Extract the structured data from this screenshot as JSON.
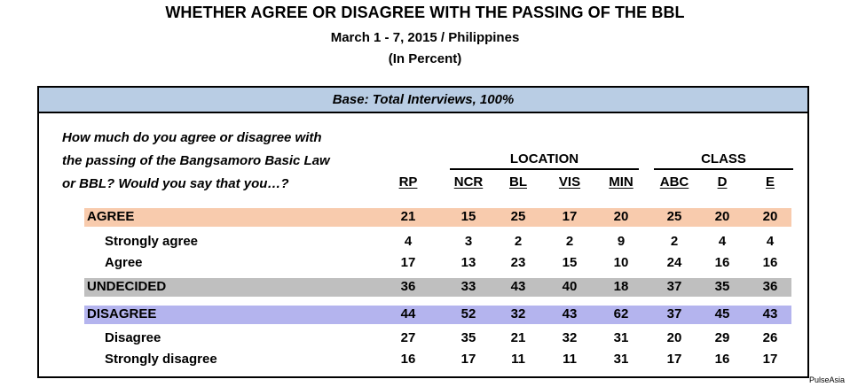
{
  "title": "WHETHER AGREE OR DISAGREE WITH THE PASSING OF THE BBL",
  "subtitle": "March 1 - 7, 2015 / Philippines",
  "unit_note": "(In Percent)",
  "base": "Base: Total Interviews, 100%",
  "question": [
    "How much do you agree or disagree with",
    "the passing of the Bangsamoro Basic Law",
    "or BBL? Would you say that you…?"
  ],
  "source": "PulseAsia",
  "colors": {
    "agree": "#f8cbad",
    "undecided": "#bfbfbf",
    "disagree": "#b4b4ee",
    "base": "#b9cde4"
  },
  "chart_data": {
    "type": "table",
    "column_groups": [
      {
        "label": "LOCATION",
        "columns": [
          "NCR",
          "BL",
          "VIS",
          "MIN"
        ]
      },
      {
        "label": "CLASS",
        "columns": [
          "ABC",
          "D",
          "E"
        ]
      }
    ],
    "columns": [
      "RP",
      "NCR",
      "BL",
      "VIS",
      "MIN",
      "ABC",
      "D",
      "E"
    ],
    "rows": [
      {
        "label": "AGREE",
        "level": 0,
        "band": "agree",
        "values": [
          21,
          15,
          25,
          17,
          20,
          25,
          20,
          20
        ]
      },
      {
        "label": "Strongly agree",
        "level": 1,
        "values": [
          4,
          3,
          2,
          2,
          9,
          2,
          4,
          4
        ]
      },
      {
        "label": "Agree",
        "level": 1,
        "values": [
          17,
          13,
          23,
          15,
          10,
          24,
          16,
          16
        ]
      },
      {
        "label": "UNDECIDED",
        "level": 0,
        "band": "undecided",
        "values": [
          36,
          33,
          43,
          40,
          18,
          37,
          35,
          36
        ]
      },
      {
        "label": "DISAGREE",
        "level": 0,
        "band": "disagree",
        "values": [
          44,
          52,
          32,
          43,
          62,
          37,
          45,
          43
        ]
      },
      {
        "label": "Disagree",
        "level": 1,
        "values": [
          27,
          35,
          21,
          32,
          31,
          20,
          29,
          26
        ]
      },
      {
        "label": "Strongly disagree",
        "level": 1,
        "values": [
          16,
          17,
          11,
          11,
          31,
          17,
          16,
          17
        ]
      }
    ]
  }
}
